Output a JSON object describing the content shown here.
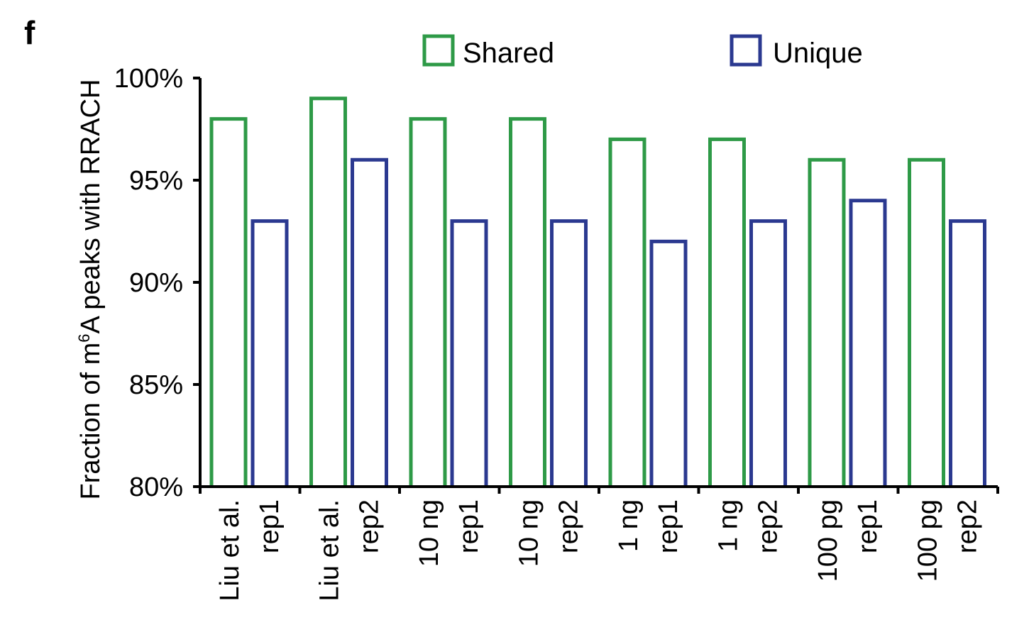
{
  "panel_label": "f",
  "chart_data": {
    "type": "bar",
    "ylabel_pre": "Fraction of m",
    "ylabel_sup": "6",
    "ylabel_post": "A peaks with RRACH",
    "ylim": [
      80,
      100
    ],
    "yticks": [
      "80%",
      "85%",
      "90%",
      "95%",
      "100%"
    ],
    "ytick_values": [
      80,
      85,
      90,
      95,
      100
    ],
    "categories": [
      [
        "Liu et al.",
        "rep1"
      ],
      [
        "Liu et al.",
        "rep2"
      ],
      [
        "10 ng",
        "rep1"
      ],
      [
        "10 ng",
        "rep2"
      ],
      [
        "1 ng",
        "rep1"
      ],
      [
        "1 ng",
        "rep2"
      ],
      [
        "100 pg",
        "rep1"
      ],
      [
        "100 pg",
        "rep2"
      ]
    ],
    "series": [
      {
        "name": "Shared",
        "color": "#2e9a47",
        "values": [
          98,
          99,
          98,
          98,
          97,
          97,
          96,
          96
        ]
      },
      {
        "name": "Unique",
        "color": "#2b3990",
        "values": [
          93,
          96,
          93,
          93,
          92,
          93,
          94,
          93
        ]
      }
    ],
    "legend_position": "top",
    "bar_style": "outline",
    "grid": false
  }
}
